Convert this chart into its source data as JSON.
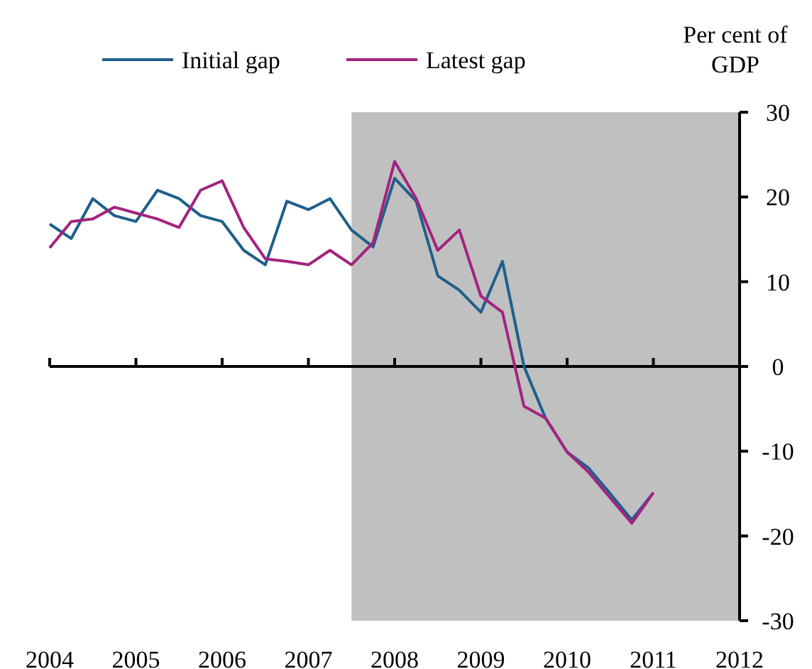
{
  "chart_data": {
    "type": "line",
    "ylabel": "Per cent of GDP",
    "x": [
      2004,
      2004.25,
      2004.5,
      2004.75,
      2005,
      2005.25,
      2005.5,
      2005.75,
      2006,
      2006.25,
      2006.5,
      2006.75,
      2007,
      2007.25,
      2007.5,
      2007.75,
      2008,
      2008.25,
      2008.5,
      2008.75,
      2009,
      2009.25,
      2009.5,
      2009.75,
      2010,
      2010.25,
      2010.5,
      2010.75,
      2011
    ],
    "series": [
      {
        "name": "Initial gap",
        "color": "#1f5f8b",
        "values": [
          16.8,
          15.1,
          19.8,
          17.8,
          17.1,
          20.8,
          19.8,
          17.8,
          17.1,
          13.7,
          12.0,
          19.5,
          18.5,
          19.8,
          16.1,
          14.1,
          22.2,
          19.5,
          10.7,
          9.0,
          6.4,
          12.4,
          0,
          -6.1,
          -10.1,
          -12.0,
          -15,
          -18.1,
          -14.9
        ]
      },
      {
        "name": "Latest gap",
        "color": "#a3237f",
        "values": [
          14.0,
          17.1,
          17.4,
          18.8,
          18.1,
          17.4,
          16.4,
          20.8,
          21.9,
          16.4,
          12.7,
          12.4,
          12.0,
          13.7,
          12.0,
          14.6,
          24.2,
          19.8,
          13.7,
          16.1,
          8.3,
          6.4,
          -4.7,
          -6.1,
          -10.1,
          -12.5,
          -15.5,
          -18.5,
          -14.9
        ]
      }
    ],
    "xlim": [
      2004,
      2012
    ],
    "xticks": [
      2004,
      2005,
      2006,
      2007,
      2008,
      2009,
      2010,
      2011,
      2012
    ],
    "ylim": [
      -30,
      30
    ],
    "yticks": [
      -30,
      -20,
      -10,
      0,
      10,
      20,
      30
    ],
    "bands": [
      {
        "axis": "x",
        "from": 2007.5,
        "to": 2012,
        "color": "#c0c0c0"
      }
    ],
    "legend": "top left",
    "marker": "none",
    "line_style": "solid"
  }
}
